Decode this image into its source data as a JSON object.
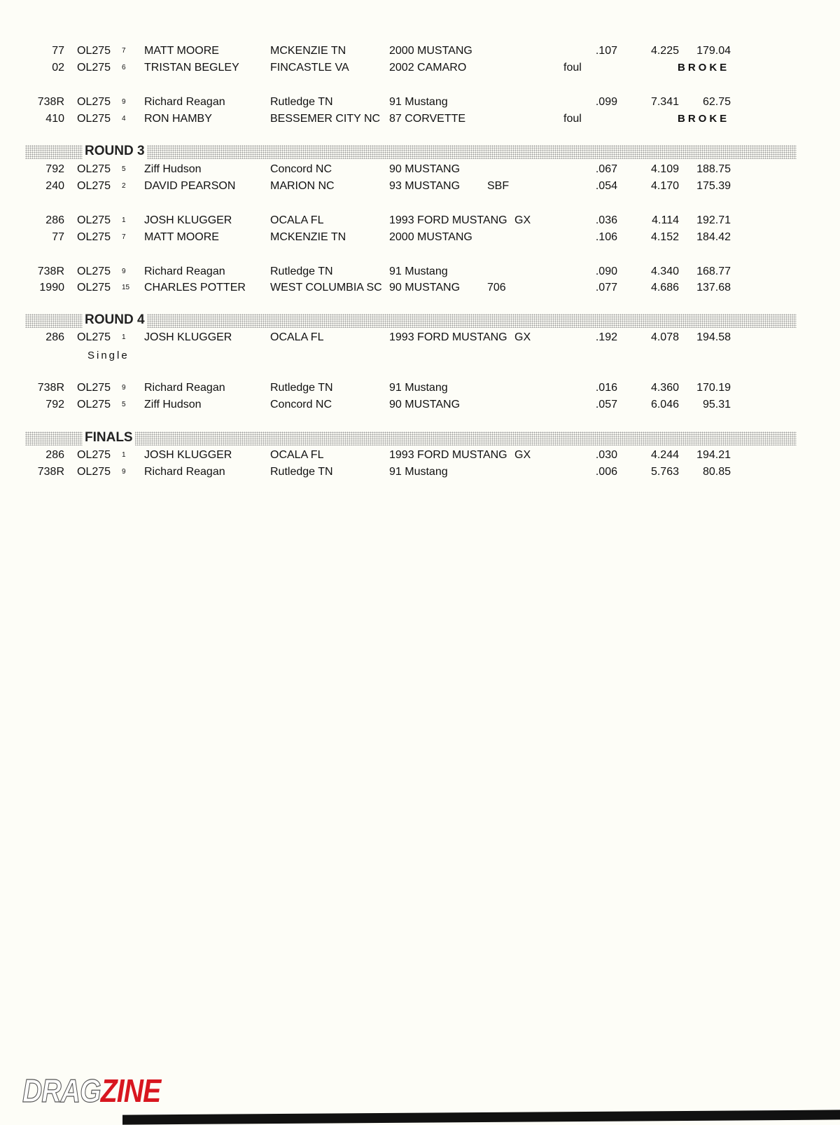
{
  "sections": [
    {
      "title": "",
      "heats": [
        [
          {
            "car_no": "77",
            "class": "OL275",
            "seed": "7",
            "driver": "MATT MOORE",
            "hometown": "MCKENZIE TN",
            "vehicle": "2000 MUSTANG",
            "extra": "",
            "foul": "",
            "rt": ".107",
            "et": "4.225",
            "mph": "179.04",
            "broke": ""
          },
          {
            "car_no": "02",
            "class": "OL275",
            "seed": "6",
            "driver": "TRISTAN BEGLEY",
            "hometown": "FINCASTLE VA",
            "vehicle": "2002 CAMARO",
            "extra": "",
            "foul": "foul",
            "rt": "",
            "et": "",
            "mph": "",
            "broke": "BROKE"
          }
        ],
        [
          {
            "car_no": "738R",
            "class": "OL275",
            "seed": "9",
            "driver": "Richard Reagan",
            "hometown": "Rutledge TN",
            "vehicle": "91 Mustang",
            "extra": "",
            "foul": "",
            "rt": ".099",
            "et": "7.341",
            "mph": "62.75",
            "broke": ""
          },
          {
            "car_no": "410",
            "class": "OL275",
            "seed": "4",
            "driver": "RON HAMBY",
            "hometown": "BESSEMER CITY NC",
            "vehicle": "87 CORVETTE",
            "extra": "",
            "foul": "foul",
            "rt": "",
            "et": "",
            "mph": "",
            "broke": "BROKE"
          }
        ]
      ]
    },
    {
      "title": "ROUND 3",
      "heats": [
        [
          {
            "car_no": "792",
            "class": "OL275",
            "seed": "5",
            "driver": "Ziff Hudson",
            "hometown": "Concord NC",
            "vehicle": "90 MUSTANG",
            "extra": "",
            "foul": "",
            "rt": ".067",
            "et": "4.109",
            "mph": "188.75",
            "broke": ""
          },
          {
            "car_no": "240",
            "class": "OL275",
            "seed": "2",
            "driver": "DAVID PEARSON",
            "hometown": "MARION NC",
            "vehicle": "93 MUSTANG",
            "extra": "SBF",
            "foul": "",
            "rt": ".054",
            "et": "4.170",
            "mph": "175.39",
            "broke": ""
          }
        ],
        [
          {
            "car_no": "286",
            "class": "OL275",
            "seed": "1",
            "driver": "JOSH KLUGGER",
            "hometown": "OCALA FL",
            "vehicle": "1993 FORD MUSTANG",
            "extra": "GX",
            "foul": "",
            "rt": ".036",
            "et": "4.114",
            "mph": "192.71",
            "broke": ""
          },
          {
            "car_no": "77",
            "class": "OL275",
            "seed": "7",
            "driver": "MATT MOORE",
            "hometown": "MCKENZIE TN",
            "vehicle": "2000 MUSTANG",
            "extra": "",
            "foul": "",
            "rt": ".106",
            "et": "4.152",
            "mph": "184.42",
            "broke": ""
          }
        ],
        [
          {
            "car_no": "738R",
            "class": "OL275",
            "seed": "9",
            "driver": "Richard Reagan",
            "hometown": "Rutledge TN",
            "vehicle": "91 Mustang",
            "extra": "",
            "foul": "",
            "rt": ".090",
            "et": "4.340",
            "mph": "168.77",
            "broke": ""
          },
          {
            "car_no": "1990",
            "class": "OL275",
            "seed": "15",
            "driver": "CHARLES POTTER",
            "hometown": "WEST COLUMBIA SC",
            "vehicle": "90 MUSTANG",
            "extra": "706",
            "foul": "",
            "rt": ".077",
            "et": "4.686",
            "mph": "137.68",
            "broke": ""
          }
        ]
      ]
    },
    {
      "title": "ROUND 4",
      "heats": [
        [
          {
            "car_no": "286",
            "class": "OL275",
            "seed": "1",
            "driver": "JOSH KLUGGER",
            "hometown": "OCALA FL",
            "vehicle": "1993 FORD MUSTANG",
            "extra": "GX",
            "foul": "",
            "rt": ".192",
            "et": "4.078",
            "mph": "194.58",
            "broke": "",
            "note": "Single"
          }
        ],
        [
          {
            "car_no": "738R",
            "class": "OL275",
            "seed": "9",
            "driver": "Richard Reagan",
            "hometown": "Rutledge TN",
            "vehicle": "91 Mustang",
            "extra": "",
            "foul": "",
            "rt": ".016",
            "et": "4.360",
            "mph": "170.19",
            "broke": ""
          },
          {
            "car_no": "792",
            "class": "OL275",
            "seed": "5",
            "driver": "Ziff Hudson",
            "hometown": "Concord NC",
            "vehicle": "90 MUSTANG",
            "extra": "",
            "foul": "",
            "rt": ".057",
            "et": "6.046",
            "mph": "95.31",
            "broke": ""
          }
        ]
      ]
    },
    {
      "title": "FINALS",
      "heats": [
        [
          {
            "car_no": "286",
            "class": "OL275",
            "seed": "1",
            "driver": "JOSH KLUGGER",
            "hometown": "OCALA FL",
            "vehicle": "1993 FORD MUSTANG",
            "extra": "GX",
            "foul": "",
            "rt": ".030",
            "et": "4.244",
            "mph": "194.21",
            "broke": ""
          },
          {
            "car_no": "738R",
            "class": "OL275",
            "seed": "9",
            "driver": "Richard Reagan",
            "hometown": "Rutledge TN",
            "vehicle": "91 Mustang",
            "extra": "",
            "foul": "",
            "rt": ".006",
            "et": "5.763",
            "mph": "80.85",
            "broke": ""
          }
        ]
      ]
    }
  ],
  "logo": {
    "part1": "DRAG",
    "part2": "ZINE",
    "accent_color": "#d8161f"
  }
}
